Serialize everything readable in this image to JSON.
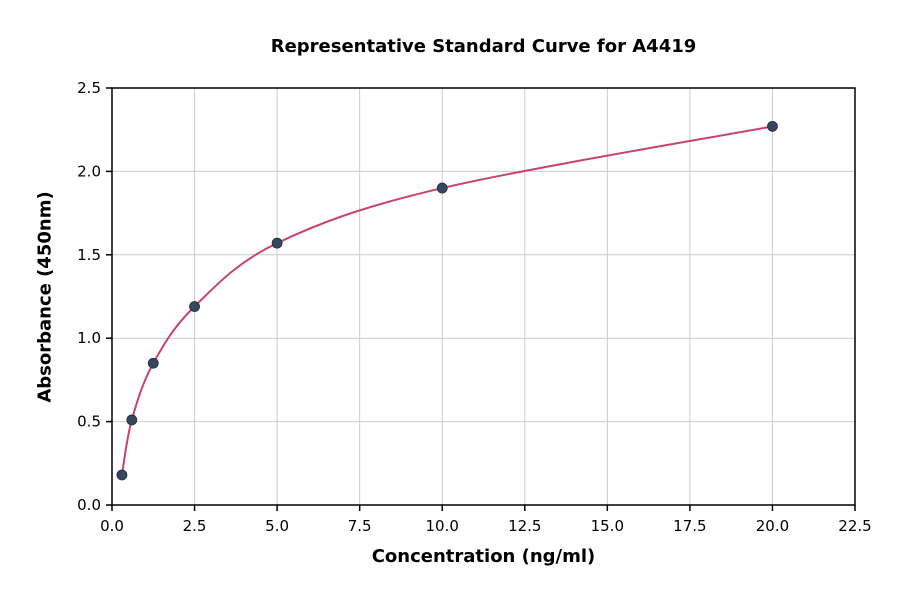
{
  "title": "Representative Standard Curve for A4419",
  "chart_data": {
    "type": "scatter",
    "title": "Representative Standard Curve for A4419",
    "xlabel": "Concentration (ng/ml)",
    "ylabel": "Absorbance (450nm)",
    "xlim": [
      0,
      22.5
    ],
    "ylim": [
      0,
      2.5
    ],
    "xticks": [
      0.0,
      2.5,
      5.0,
      7.5,
      10.0,
      12.5,
      15.0,
      17.5,
      20.0,
      22.5
    ],
    "yticks": [
      0.0,
      0.5,
      1.0,
      1.5,
      2.0,
      2.5
    ],
    "grid": true,
    "legend_position": "none",
    "points": [
      {
        "x": 0.3,
        "y": 0.18
      },
      {
        "x": 0.6,
        "y": 0.51
      },
      {
        "x": 1.25,
        "y": 0.85
      },
      {
        "x": 2.5,
        "y": 1.19
      },
      {
        "x": 5.0,
        "y": 1.57
      },
      {
        "x": 10.0,
        "y": 1.9
      },
      {
        "x": 20.0,
        "y": 2.27
      }
    ],
    "colors": {
      "curve": "#c8446c",
      "point_fill": "#34475f",
      "point_edge": "#1f2d3d",
      "grid": "#cccccc",
      "frame": "#000000"
    }
  }
}
